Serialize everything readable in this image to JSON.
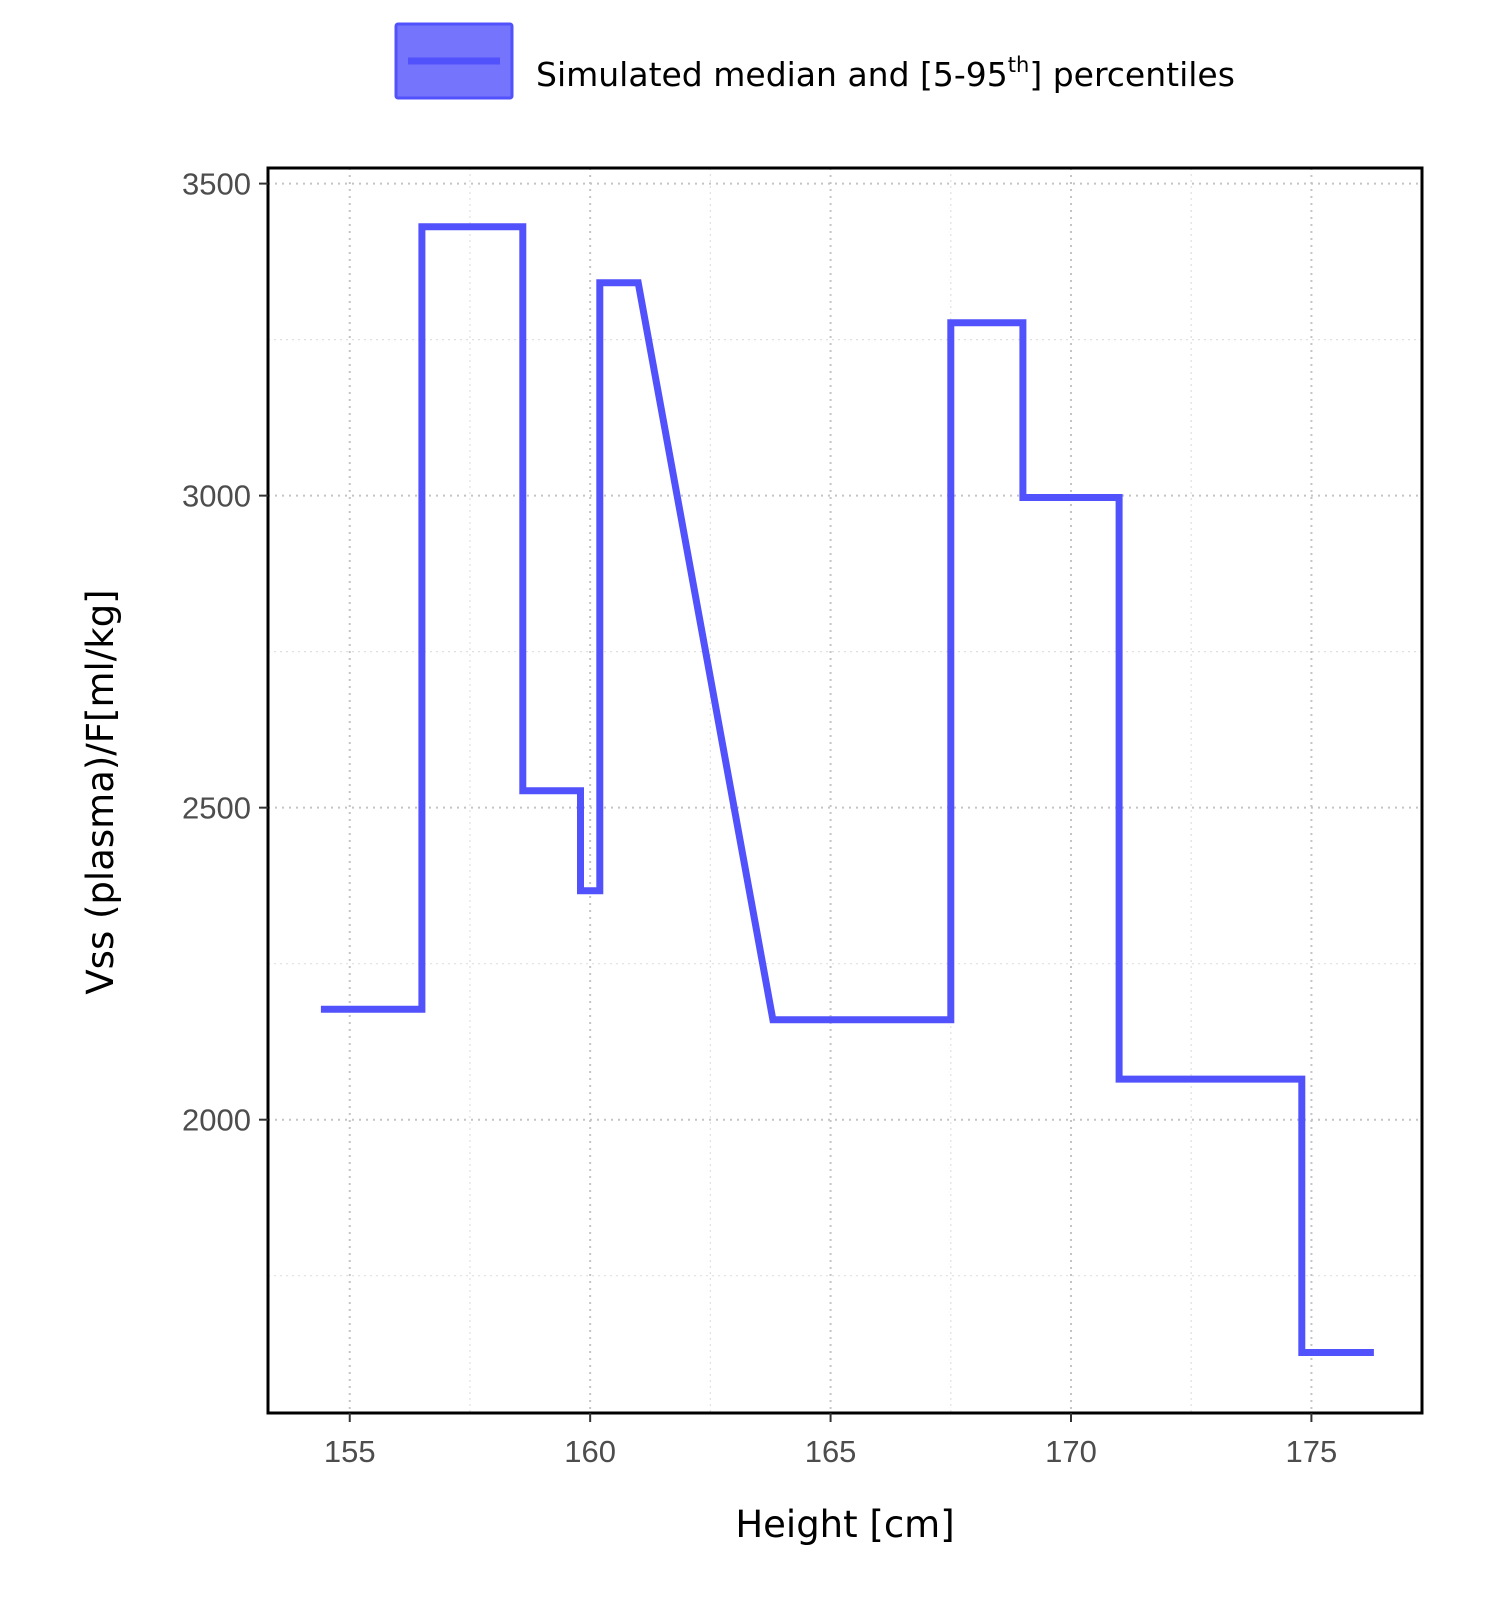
{
  "chart_data": {
    "type": "line",
    "xlabel": "Height [cm]",
    "ylabel": "Vss (plasma)/F[ml/kg]",
    "xlim": [
      153.3,
      177.3
    ],
    "ylim": [
      1530,
      3525
    ],
    "x_ticks": [
      155,
      160,
      165,
      170,
      175
    ],
    "y_ticks": [
      2000,
      2500,
      3000,
      3500
    ],
    "grid": true,
    "legend_position": "top",
    "legend": {
      "label_prefix": "Simulated median and [5-95",
      "label_sup": "th",
      "label_suffix": "] percentiles"
    },
    "colors": {
      "series": "#5252fc",
      "band_fill": "#7474fd"
    },
    "series": [
      {
        "x": [
          154.4,
          156.5,
          156.5,
          158.6,
          158.6,
          159.8,
          159.8,
          160.2,
          160.2,
          161.0,
          163.8,
          167.5,
          167.5,
          169.0,
          169.0,
          171.0,
          171.0,
          174.8,
          174.8,
          176.3
        ],
        "y": [
          2177,
          2177,
          3431,
          3431,
          2527,
          2527,
          2367,
          2367,
          3341,
          3341,
          2160,
          2160,
          3277,
          3277,
          2997,
          2997,
          2065,
          2065,
          1627,
          1627
        ]
      }
    ]
  }
}
